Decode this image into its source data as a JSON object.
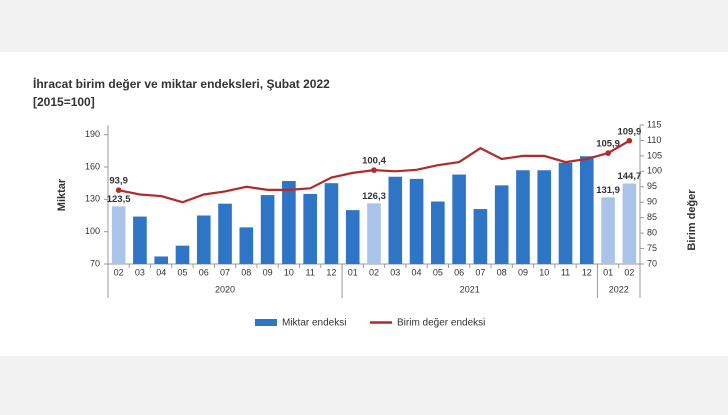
{
  "chart_data": {
    "type": "bar-line",
    "title": "İhracat birim değer ve miktar endeksleri, Şubat 2022",
    "subtitle": "[2015=100]",
    "y_label": "Miktar",
    "y2_label": "Birim değer",
    "groups": [
      {
        "name": "2020",
        "categories": [
          "02",
          "03",
          "04",
          "05",
          "06",
          "07",
          "08",
          "09",
          "10",
          "11",
          "12"
        ]
      },
      {
        "name": "2021",
        "categories": [
          "01",
          "02",
          "03",
          "04",
          "05",
          "06",
          "07",
          "08",
          "09",
          "10",
          "11",
          "12"
        ]
      },
      {
        "name": "2022",
        "categories": [
          "01",
          "02"
        ]
      }
    ],
    "series": [
      {
        "name": "Miktar endeksi",
        "kind": "bar",
        "color": "#2e75c6",
        "bar_colors": [
          "#a9c4e8",
          "#2e75c6",
          "#2e75c6",
          "#2e75c6",
          "#2e75c6",
          "#2e75c6",
          "#2e75c6",
          "#2e75c6",
          "#2e75c6",
          "#2e75c6",
          "#2e75c6",
          "#2e75c6",
          "#a9c4e8",
          "#2e75c6",
          "#2e75c6",
          "#2e75c6",
          "#2e75c6",
          "#2e75c6",
          "#2e75c6",
          "#2e75c6",
          "#2e75c6",
          "#2e75c6",
          "#2e75c6",
          "#a9c4e8",
          "#a9c4e8"
        ],
        "values": [
          123.5,
          114,
          77,
          87,
          115,
          126,
          104,
          134,
          147,
          135,
          145,
          120,
          126.3,
          151,
          149,
          128,
          153,
          121,
          143,
          157,
          157,
          164,
          170,
          131.9,
          144.7
        ],
        "value_labels": [
          "123,5",
          null,
          null,
          null,
          null,
          null,
          null,
          null,
          null,
          null,
          null,
          null,
          "126,3",
          null,
          null,
          null,
          null,
          null,
          null,
          null,
          null,
          null,
          null,
          "131,9",
          "144,7"
        ]
      },
      {
        "name": "Birim değer endeksi",
        "kind": "line",
        "axis": "y2",
        "color": "#b22a2a",
        "values": [
          93.9,
          92.5,
          92,
          90,
          92.5,
          93.5,
          95,
          94,
          94,
          94.5,
          98,
          99.5,
          100.4,
          100,
          100.5,
          102,
          103,
          107.5,
          104,
          105,
          105,
          103,
          104,
          105.9,
          109.9
        ],
        "value_labels": [
          "93,9",
          null,
          null,
          null,
          null,
          null,
          null,
          null,
          null,
          null,
          null,
          null,
          "100,4",
          null,
          null,
          null,
          null,
          null,
          null,
          null,
          null,
          null,
          null,
          "105,9",
          "109,9"
        ]
      }
    ],
    "ylim": [
      70,
      199
    ],
    "yticks": [
      70,
      100,
      130,
      160,
      190
    ],
    "y2lim": [
      70,
      115
    ],
    "y2ticks": [
      70,
      75,
      80,
      85,
      90,
      95,
      100,
      105,
      110,
      115
    ]
  }
}
